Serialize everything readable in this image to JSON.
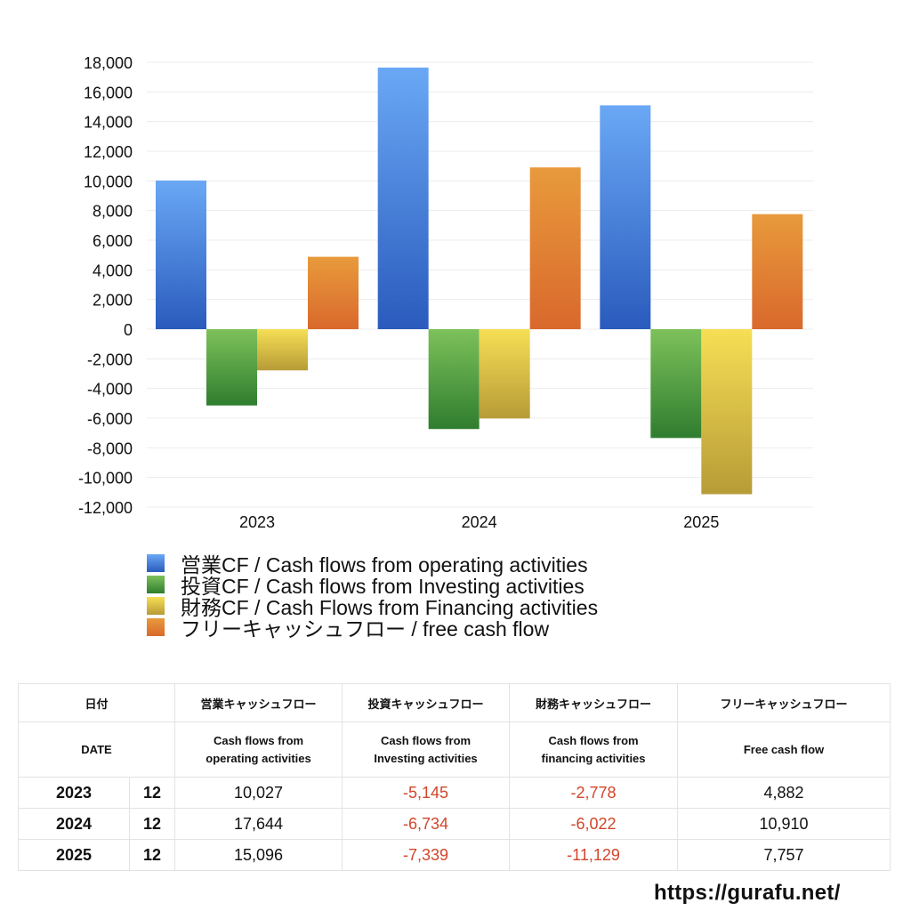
{
  "chart_data": {
    "type": "bar",
    "categories": [
      "2023",
      "2024",
      "2025"
    ],
    "series": [
      {
        "name": "営業CF / Cash flows from operating activities",
        "values": [
          10027,
          17644,
          15096
        ],
        "color_top": "#6aa8f5",
        "color_bottom": "#2a5bbd"
      },
      {
        "name": "投資CF / Cash flows from Investing activities",
        "values": [
          -5145,
          -6734,
          -7339
        ],
        "color_top": "#7dc15a",
        "color_bottom": "#2f7d2f"
      },
      {
        "name": "財務CF / Cash Flows from Financing activities",
        "values": [
          -2778,
          -6022,
          -11129
        ],
        "color_top": "#f6df55",
        "color_bottom": "#b79b37"
      },
      {
        "name": "フリーキャッシュフロー / free cash flow",
        "values": [
          4882,
          10910,
          7757
        ],
        "color_top": "#e89a3c",
        "color_bottom": "#d9692c"
      }
    ],
    "yticks": [
      "18,000",
      "16,000",
      "14,000",
      "12,000",
      "10,000",
      "8,000",
      "6,000",
      "4,000",
      "2,000",
      "0",
      "-2,000",
      "-4,000",
      "-6,000",
      "-8,000",
      "-10,000",
      "-12,000"
    ],
    "ylim": [
      -12000,
      18000
    ],
    "ytick_step": 2000,
    "grid": true,
    "legend_position": "bottom"
  },
  "table": {
    "headers_ja": [
      "日付",
      "営業キャッシュフロー",
      "投資キャッシュフロー",
      "財務キャッシュフロー",
      "フリーキャッシュフロー"
    ],
    "headers_en": [
      "DATE",
      "Cash flows from operating activities",
      "Cash flows from Investing activities",
      "Cash flows from financing activities",
      "Free cash flow"
    ],
    "headers_en_lines": [
      [
        "DATE"
      ],
      [
        "Cash flows from",
        "operating activities"
      ],
      [
        "Cash flows from",
        "Investing activities"
      ],
      [
        "Cash flows from",
        "financing activities"
      ],
      [
        "Free cash flow"
      ]
    ],
    "rows": [
      {
        "year": "2023",
        "month": "12",
        "operating": "10,027",
        "investing": "-5,145",
        "financing": "-2,778",
        "free": "4,882"
      },
      {
        "year": "2024",
        "month": "12",
        "operating": "17,644",
        "investing": "-6,734",
        "financing": "-6,022",
        "free": "10,910"
      },
      {
        "year": "2025",
        "month": "12",
        "operating": "15,096",
        "investing": "-7,339",
        "financing": "-11,129",
        "free": "7,757"
      }
    ],
    "negative_color": "#d2462b"
  },
  "site_url": "https://gurafu.net/"
}
